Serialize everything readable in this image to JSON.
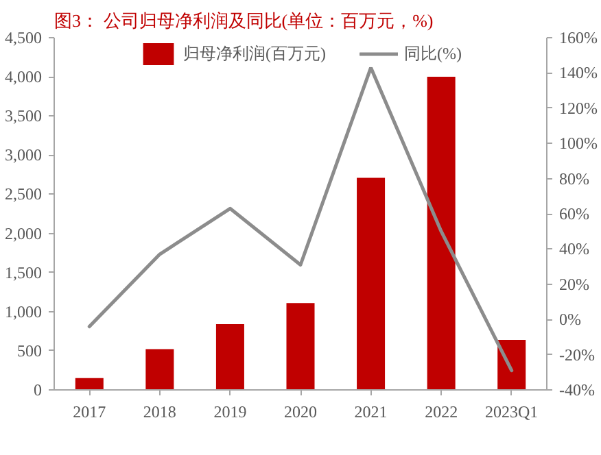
{
  "chart_data": {
    "type": "bar",
    "title": "图3：  公司归母净利润及同比(单位：百万元，%)",
    "categories": [
      "2017",
      "2018",
      "2019",
      "2020",
      "2021",
      "2022",
      "2023Q1"
    ],
    "series": [
      {
        "name": "归母净利润(百万元)",
        "color": "#c00000",
        "values": [
          150,
          520,
          840,
          1110,
          2710,
          4000,
          640
        ]
      },
      {
        "name": "同比(%)",
        "type": "line",
        "color": "#8c8c8c",
        "axis": "y2",
        "values": [
          -4,
          37,
          63,
          31,
          143,
          50,
          -29
        ]
      }
    ],
    "ylim": [
      0,
      4500
    ],
    "yticks": [
      0,
      {
        "value": 500,
        "label": "500"
      },
      {
        "value": 1000,
        "label": "1,000"
      },
      {
        "value": 1500,
        "label": "1,500"
      },
      {
        "value": 2000,
        "label": "2,000"
      },
      {
        "value": 2500,
        "label": "2,500"
      },
      {
        "value": 3000,
        "label": "3,000"
      },
      {
        "value": 3500,
        "label": "3,500"
      },
      {
        "value": 4000,
        "label": "4,000"
      },
      {
        "value": 4500,
        "label": "4,500"
      }
    ],
    "y2lim": [
      -40,
      160
    ],
    "y2ticks": [
      {
        "value": -40,
        "label": "-40%"
      },
      {
        "value": -20,
        "label": "-20%"
      },
      {
        "value": 0,
        "label": "0%"
      },
      {
        "value": 20,
        "label": "20%"
      },
      {
        "value": 40,
        "label": "40%"
      },
      {
        "value": 60,
        "label": "60%"
      },
      {
        "value": 80,
        "label": "80%"
      },
      {
        "value": 100,
        "label": "100%"
      },
      {
        "value": 120,
        "label": "120%"
      },
      {
        "value": 140,
        "label": "140%"
      },
      {
        "value": 160,
        "label": "160%"
      }
    ],
    "legend": "top",
    "grid": false
  }
}
